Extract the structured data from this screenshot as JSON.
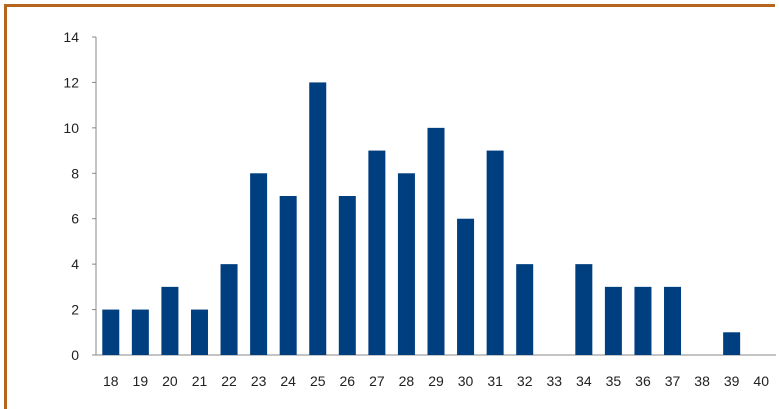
{
  "chart_data": {
    "type": "bar",
    "categories": [
      "18",
      "19",
      "20",
      "21",
      "22",
      "23",
      "24",
      "25",
      "26",
      "27",
      "28",
      "29",
      "30",
      "31",
      "32",
      "33",
      "34",
      "35",
      "36",
      "37",
      "38",
      "39",
      "40"
    ],
    "values": [
      2,
      2,
      3,
      2,
      4,
      8,
      7,
      12,
      7,
      9,
      8,
      10,
      6,
      9,
      4,
      0,
      4,
      3,
      3,
      3,
      0,
      1,
      0
    ],
    "title": "",
    "xlabel": "",
    "ylabel": "",
    "ylim": [
      0,
      14
    ],
    "yticks": [
      0,
      2,
      4,
      6,
      8,
      10,
      12,
      14
    ],
    "grid": false,
    "legend": "none",
    "bar_color": "#003f7f",
    "frame_color": "#b5651d"
  }
}
